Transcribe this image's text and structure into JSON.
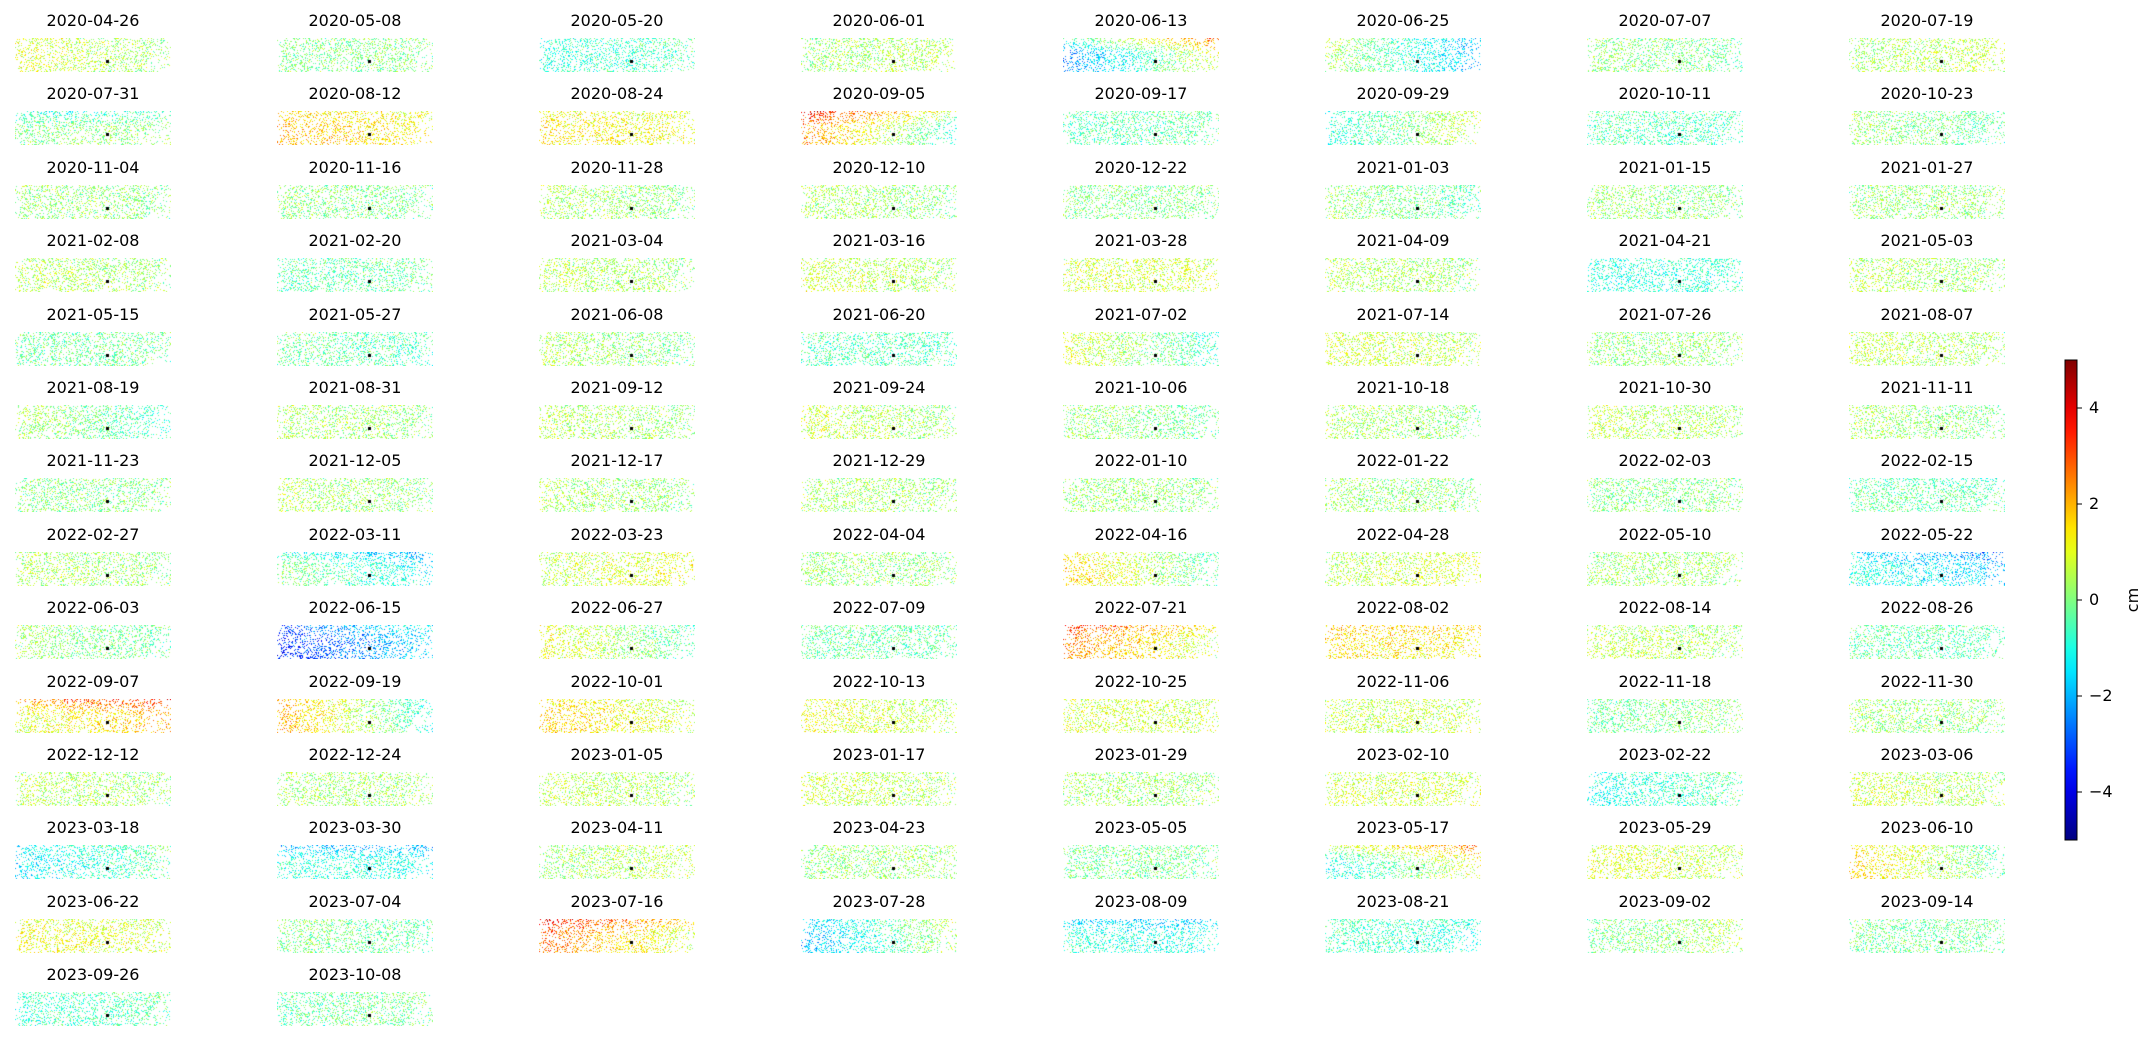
{
  "chart_data": {
    "type": "heatmap",
    "layout": {
      "columns": 8,
      "rows": 14
    },
    "reference_marker": "black-point",
    "colormap": "jet",
    "colorbar": {
      "label": "cm",
      "vmin": -5,
      "vmax": 5,
      "ticks": [
        4,
        2,
        0,
        -2,
        -4
      ],
      "tick_labels": [
        "4",
        "2",
        "0",
        "−2",
        "−4"
      ]
    },
    "panels": [
      {
        "date": "2020-04-26",
        "mean": 0.5,
        "west": 1.0,
        "east": 0.2,
        "north": 0.0
      },
      {
        "date": "2020-05-08",
        "mean": 0.0,
        "west": 0.0,
        "east": 0.0,
        "north": 0.0
      },
      {
        "date": "2020-05-20",
        "mean": -0.7,
        "west": -1.0,
        "east": -0.4,
        "north": 0.0
      },
      {
        "date": "2020-06-01",
        "mean": 0.3,
        "west": 0.2,
        "east": 0.6,
        "north": 0.0
      },
      {
        "date": "2020-06-13",
        "mean": -0.5,
        "west": -2.5,
        "east": 1.0,
        "north": 2.5
      },
      {
        "date": "2020-06-25",
        "mean": -0.5,
        "west": 0.5,
        "east": -2.0,
        "north": 0.0
      },
      {
        "date": "2020-07-07",
        "mean": 0.0,
        "west": 0.2,
        "east": -0.2,
        "north": 0.0
      },
      {
        "date": "2020-07-19",
        "mean": 0.5,
        "west": 0.3,
        "east": 0.7,
        "north": 0.0
      },
      {
        "date": "2020-07-31",
        "mean": -0.3,
        "west": 0.0,
        "east": 0.2,
        "north": -1.5
      },
      {
        "date": "2020-08-12",
        "mean": 1.5,
        "west": 2.0,
        "east": 1.2,
        "north": 0.0
      },
      {
        "date": "2020-08-24",
        "mean": 1.2,
        "west": 1.5,
        "east": 1.0,
        "north": 0.0
      },
      {
        "date": "2020-09-05",
        "mean": 0.5,
        "west": 2.5,
        "east": -1.0,
        "north": 2.5
      },
      {
        "date": "2020-09-17",
        "mean": -0.5,
        "west": -0.5,
        "east": -0.3,
        "north": 0.0
      },
      {
        "date": "2020-09-29",
        "mean": -0.3,
        "west": -1.0,
        "east": 0.8,
        "north": 0.0
      },
      {
        "date": "2020-10-11",
        "mean": -0.5,
        "west": -0.4,
        "east": -0.6,
        "north": 0.0
      },
      {
        "date": "2020-10-23",
        "mean": 0.0,
        "west": 0.3,
        "east": -0.4,
        "north": 0.0
      },
      {
        "date": "2020-11-04",
        "mean": 0.2,
        "west": 0.3,
        "east": 0.0,
        "north": 0.0
      },
      {
        "date": "2020-11-16",
        "mean": 0.0,
        "west": 0.2,
        "east": -0.2,
        "north": 0.0
      },
      {
        "date": "2020-11-28",
        "mean": 0.3,
        "west": 0.5,
        "east": 0.0,
        "north": 0.0
      },
      {
        "date": "2020-12-10",
        "mean": 0.2,
        "west": 0.5,
        "east": 0.0,
        "north": 0.0
      },
      {
        "date": "2020-12-22",
        "mean": 0.0,
        "west": 0.0,
        "east": 0.0,
        "north": 0.0
      },
      {
        "date": "2021-01-03",
        "mean": 0.0,
        "west": 0.3,
        "east": -0.5,
        "north": 0.0
      },
      {
        "date": "2021-01-15",
        "mean": 0.2,
        "west": 0.3,
        "east": 0.0,
        "north": 0.0
      },
      {
        "date": "2021-01-27",
        "mean": 0.2,
        "west": 0.2,
        "east": 0.2,
        "north": 0.0
      },
      {
        "date": "2021-02-08",
        "mean": 0.4,
        "west": 0.6,
        "east": 0.2,
        "north": 0.0
      },
      {
        "date": "2021-02-20",
        "mean": -0.3,
        "west": -0.4,
        "east": -0.2,
        "north": 0.0
      },
      {
        "date": "2021-03-04",
        "mean": 0.4,
        "west": 0.6,
        "east": 0.2,
        "north": 0.0
      },
      {
        "date": "2021-03-16",
        "mean": 0.6,
        "west": 0.9,
        "east": 0.3,
        "north": 0.0
      },
      {
        "date": "2021-03-28",
        "mean": 0.6,
        "west": 0.8,
        "east": 0.8,
        "north": 0.0
      },
      {
        "date": "2021-04-09",
        "mean": 0.4,
        "west": 0.6,
        "east": 0.2,
        "north": 0.0
      },
      {
        "date": "2021-04-21",
        "mean": -0.9,
        "west": -1.0,
        "east": -0.8,
        "north": 0.0
      },
      {
        "date": "2021-05-03",
        "mean": 0.4,
        "west": 0.6,
        "east": 0.2,
        "north": 0.0
      },
      {
        "date": "2021-05-15",
        "mean": -0.2,
        "west": -0.2,
        "east": -0.2,
        "north": 0.0
      },
      {
        "date": "2021-05-27",
        "mean": -0.4,
        "west": -0.2,
        "east": -0.6,
        "north": 0.0
      },
      {
        "date": "2021-06-08",
        "mean": 0.2,
        "west": 0.5,
        "east": -0.1,
        "north": 0.0
      },
      {
        "date": "2021-06-20",
        "mean": -0.5,
        "west": -0.5,
        "east": -0.5,
        "north": 0.0
      },
      {
        "date": "2021-07-02",
        "mean": 0.0,
        "west": 1.0,
        "east": -0.8,
        "north": 0.0
      },
      {
        "date": "2021-07-14",
        "mean": 0.7,
        "west": 0.9,
        "east": 0.5,
        "north": 0.0
      },
      {
        "date": "2021-07-26",
        "mean": 0.2,
        "west": 0.2,
        "east": 0.2,
        "north": 0.0
      },
      {
        "date": "2021-08-07",
        "mean": 0.5,
        "west": 0.7,
        "east": 0.3,
        "north": 0.0
      },
      {
        "date": "2021-08-19",
        "mean": 0.0,
        "west": 0.5,
        "east": -0.8,
        "north": 0.0
      },
      {
        "date": "2021-08-31",
        "mean": 0.3,
        "west": 0.5,
        "east": 0.1,
        "north": 0.0
      },
      {
        "date": "2021-09-12",
        "mean": 0.4,
        "west": 0.6,
        "east": 0.2,
        "north": 0.0
      },
      {
        "date": "2021-09-24",
        "mean": 0.5,
        "west": 0.8,
        "east": 0.2,
        "north": 0.0
      },
      {
        "date": "2021-10-06",
        "mean": 0.0,
        "west": 0.3,
        "east": -0.2,
        "north": 0.0
      },
      {
        "date": "2021-10-18",
        "mean": 0.3,
        "west": 0.5,
        "east": 0.1,
        "north": 0.0
      },
      {
        "date": "2021-10-30",
        "mean": 0.5,
        "west": 0.7,
        "east": 0.3,
        "north": 0.0
      },
      {
        "date": "2021-11-11",
        "mean": 0.2,
        "west": 0.4,
        "east": 0.0,
        "north": 0.0
      },
      {
        "date": "2021-11-23",
        "mean": 0.0,
        "west": 0.0,
        "east": 0.0,
        "north": 0.0
      },
      {
        "date": "2021-12-05",
        "mean": 0.3,
        "west": 0.5,
        "east": 0.1,
        "north": 0.0
      },
      {
        "date": "2021-12-17",
        "mean": 0.3,
        "west": 0.5,
        "east": 0.1,
        "north": 0.0
      },
      {
        "date": "2021-12-29",
        "mean": 0.3,
        "west": 0.4,
        "east": 0.2,
        "north": 0.0
      },
      {
        "date": "2022-01-10",
        "mean": 0.2,
        "west": 0.3,
        "east": 0.1,
        "north": 0.0
      },
      {
        "date": "2022-01-22",
        "mean": 0.2,
        "west": 0.3,
        "east": 0.1,
        "north": 0.0
      },
      {
        "date": "2022-02-03",
        "mean": 0.0,
        "west": 0.0,
        "east": 0.0,
        "north": 0.0
      },
      {
        "date": "2022-02-15",
        "mean": -0.3,
        "west": -0.2,
        "east": -0.4,
        "north": -0.5
      },
      {
        "date": "2022-02-27",
        "mean": 0.3,
        "west": 0.5,
        "east": 0.1,
        "north": 0.0
      },
      {
        "date": "2022-03-11",
        "mean": -0.7,
        "west": 0.2,
        "east": -1.3,
        "north": -1.5
      },
      {
        "date": "2022-03-23",
        "mean": 0.8,
        "west": 0.5,
        "east": 1.2,
        "north": 0.0
      },
      {
        "date": "2022-04-04",
        "mean": 0.2,
        "west": 0.2,
        "east": 0.2,
        "north": 0.0
      },
      {
        "date": "2022-04-16",
        "mean": 0.6,
        "west": 1.8,
        "east": -0.5,
        "north": 0.0
      },
      {
        "date": "2022-04-28",
        "mean": 0.7,
        "west": 0.5,
        "east": 1.0,
        "north": 0.0
      },
      {
        "date": "2022-05-10",
        "mean": 0.3,
        "west": 0.3,
        "east": 0.3,
        "north": 0.0
      },
      {
        "date": "2022-05-22",
        "mean": -1.2,
        "west": -0.8,
        "east": -1.8,
        "north": -1.5
      },
      {
        "date": "2022-06-03",
        "mean": 0.0,
        "west": 0.3,
        "east": -0.3,
        "north": 0.0
      },
      {
        "date": "2022-06-15",
        "mean": -2.8,
        "west": -3.5,
        "east": -1.5,
        "north": 0.0
      },
      {
        "date": "2022-06-27",
        "mean": 0.5,
        "west": 1.2,
        "east": -0.5,
        "north": 0.0
      },
      {
        "date": "2022-07-09",
        "mean": -0.3,
        "west": -0.2,
        "east": -0.4,
        "north": 0.0
      },
      {
        "date": "2022-07-21",
        "mean": 1.2,
        "west": 2.5,
        "east": 0.5,
        "north": 1.5
      },
      {
        "date": "2022-08-02",
        "mean": 1.3,
        "west": 1.5,
        "east": 1.2,
        "north": 1.0
      },
      {
        "date": "2022-08-14",
        "mean": 0.5,
        "west": 0.7,
        "east": 0.3,
        "north": 0.0
      },
      {
        "date": "2022-08-26",
        "mean": -0.4,
        "west": -0.3,
        "east": -0.5,
        "north": 0.0
      },
      {
        "date": "2022-09-07",
        "mean": 1.2,
        "west": 0.8,
        "east": 2.0,
        "north": 2.5
      },
      {
        "date": "2022-09-19",
        "mean": 0.3,
        "west": 2.2,
        "east": -1.0,
        "north": 0.0
      },
      {
        "date": "2022-10-01",
        "mean": 1.2,
        "west": 1.8,
        "east": 0.6,
        "north": 0.0
      },
      {
        "date": "2022-10-13",
        "mean": 0.8,
        "west": 1.2,
        "east": 0.4,
        "north": 0.0
      },
      {
        "date": "2022-10-25",
        "mean": 0.8,
        "west": 0.9,
        "east": 0.7,
        "north": 0.0
      },
      {
        "date": "2022-11-06",
        "mean": 0.6,
        "west": 0.6,
        "east": 0.6,
        "north": 0.0
      },
      {
        "date": "2022-11-18",
        "mean": 0.0,
        "west": -0.3,
        "east": 0.3,
        "north": 0.0
      },
      {
        "date": "2022-11-30",
        "mean": 0.2,
        "west": 0.3,
        "east": 0.1,
        "north": 0.0
      },
      {
        "date": "2022-12-12",
        "mean": 0.4,
        "west": 0.6,
        "east": 0.2,
        "north": 0.0
      },
      {
        "date": "2022-12-24",
        "mean": 0.3,
        "west": 0.3,
        "east": 0.3,
        "north": 0.0
      },
      {
        "date": "2023-01-05",
        "mean": 0.5,
        "west": 0.7,
        "east": 0.3,
        "north": 0.0
      },
      {
        "date": "2023-01-17",
        "mean": 0.6,
        "west": 0.8,
        "east": 0.4,
        "north": 0.0
      },
      {
        "date": "2023-01-29",
        "mean": 0.3,
        "west": 0.3,
        "east": 0.3,
        "north": 0.0
      },
      {
        "date": "2023-02-10",
        "mean": 0.8,
        "west": 0.8,
        "east": 0.8,
        "north": 0.0
      },
      {
        "date": "2023-02-22",
        "mean": -0.8,
        "west": -1.2,
        "east": -0.3,
        "north": 0.0
      },
      {
        "date": "2023-03-06",
        "mean": 0.6,
        "west": 0.8,
        "east": 0.4,
        "north": 0.0
      },
      {
        "date": "2023-03-18",
        "mean": -0.8,
        "west": -1.5,
        "east": -0.2,
        "north": 0.0
      },
      {
        "date": "2023-03-30",
        "mean": -1.0,
        "west": -0.8,
        "east": -1.0,
        "north": -2.0
      },
      {
        "date": "2023-04-11",
        "mean": 0.4,
        "west": 0.2,
        "east": 0.7,
        "north": 0.0
      },
      {
        "date": "2023-04-23",
        "mean": 0.2,
        "west": 0.1,
        "east": 0.3,
        "north": 0.0
      },
      {
        "date": "2023-05-05",
        "mean": -0.1,
        "west": -0.1,
        "east": -0.1,
        "north": 0.0
      },
      {
        "date": "2023-05-17",
        "mean": -0.4,
        "west": -1.2,
        "east": 1.0,
        "north": 2.5
      },
      {
        "date": "2023-05-29",
        "mean": 0.8,
        "west": 1.0,
        "east": 0.6,
        "north": 0.0
      },
      {
        "date": "2023-06-10",
        "mean": 0.6,
        "west": 1.8,
        "east": -0.5,
        "north": 0.0
      },
      {
        "date": "2023-06-22",
        "mean": 1.0,
        "west": 1.2,
        "east": 0.8,
        "north": 0.0
      },
      {
        "date": "2023-07-04",
        "mean": -0.2,
        "west": 0.0,
        "east": -0.4,
        "north": 0.0
      },
      {
        "date": "2023-07-16",
        "mean": 1.5,
        "west": 2.8,
        "east": 0.5,
        "north": 2.0
      },
      {
        "date": "2023-07-28",
        "mean": -1.0,
        "west": -2.0,
        "east": 0.5,
        "north": 0.0
      },
      {
        "date": "2023-08-09",
        "mean": -0.9,
        "west": -0.8,
        "east": -1.0,
        "north": -1.5
      },
      {
        "date": "2023-08-21",
        "mean": -0.7,
        "west": -0.5,
        "east": -1.0,
        "north": 0.0
      },
      {
        "date": "2023-09-02",
        "mean": 0.0,
        "west": -0.2,
        "east": 0.5,
        "north": 0.0
      },
      {
        "date": "2023-09-14",
        "mean": -0.2,
        "west": -0.2,
        "east": -0.2,
        "north": 0.0
      },
      {
        "date": "2023-09-26",
        "mean": -0.6,
        "west": -0.8,
        "east": -0.3,
        "north": 0.0
      },
      {
        "date": "2023-10-08",
        "mean": -0.2,
        "west": -0.4,
        "east": 0.0,
        "north": 0.0
      }
    ]
  }
}
